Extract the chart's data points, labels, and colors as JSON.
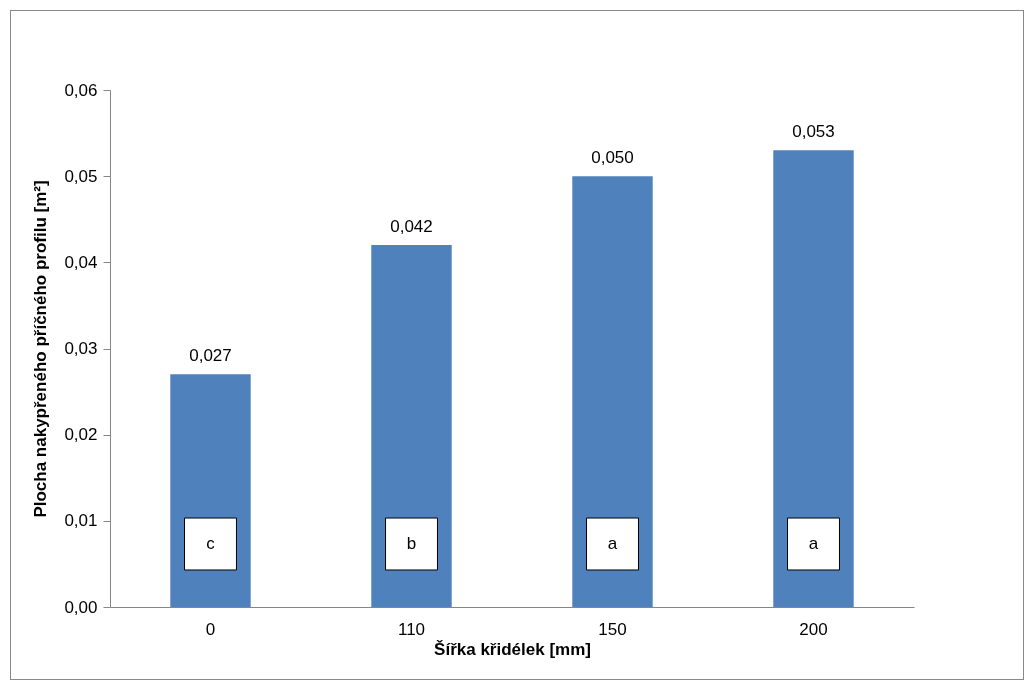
{
  "chart_data": {
    "type": "bar",
    "xlabel": "Šířka křidélek [mm]",
    "ylabel": "Plocha nakypřeného příčného profilu [m²]",
    "categories": [
      "0",
      "110",
      "150",
      "200"
    ],
    "values": [
      0.027,
      0.042,
      0.05,
      0.053
    ],
    "value_labels": [
      "0,027",
      "0,042",
      "0,050",
      "0,053"
    ],
    "color": "#4f81bd",
    "ylim": [
      0,
      0.06
    ],
    "yticks": [
      {
        "value": 0,
        "label": "0,00"
      },
      {
        "value": 0.01,
        "label": "0,01"
      },
      {
        "value": 0.02,
        "label": "0,02"
      },
      {
        "value": 0.03,
        "label": "0,03"
      },
      {
        "value": 0.04,
        "label": "0,04"
      },
      {
        "value": 0.05,
        "label": "0,05"
      },
      {
        "value": 0.06,
        "label": "0,06"
      }
    ],
    "annotations": [
      "c",
      "b",
      "a",
      "a"
    ]
  }
}
